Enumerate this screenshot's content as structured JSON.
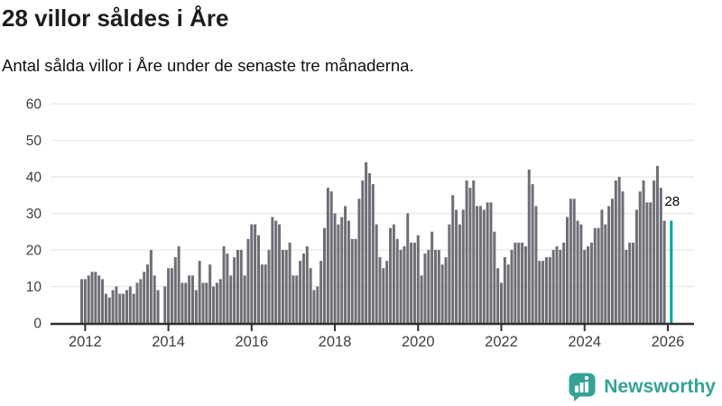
{
  "header": {
    "title": "28 villor såldes i Åre",
    "subtitle": "Antal sålda villor i Åre under de senaste tre månaderna."
  },
  "footer": {
    "brand": "Newsworthy"
  },
  "chart_data": {
    "type": "bar",
    "title": "28 villor såldes i Åre",
    "subtitle": "Antal sålda villor i Åre under de senaste tre månaderna.",
    "x_unit": "month",
    "x_start": "2011-12",
    "x_end": "2025-12",
    "ylim": [
      0,
      62
    ],
    "yticks": [
      0,
      10,
      20,
      30,
      40,
      50,
      60
    ],
    "grid": true,
    "values": [
      12,
      12,
      13,
      14,
      14,
      13,
      12,
      8,
      7,
      9,
      10,
      8,
      8,
      9,
      10,
      8,
      11,
      12,
      14,
      16,
      20,
      13,
      9,
      0,
      10,
      15,
      15,
      18,
      21,
      11,
      11,
      13,
      13,
      9,
      17,
      11,
      11,
      16,
      10,
      11,
      12,
      21,
      19,
      13,
      18,
      20,
      20,
      13,
      23,
      27,
      27,
      24,
      16,
      16,
      20,
      29,
      28,
      27,
      20,
      20,
      22,
      13,
      13,
      17,
      19,
      21,
      15,
      9,
      10,
      17,
      26,
      37,
      36,
      30,
      27,
      29,
      32,
      28,
      23,
      23,
      34,
      39,
      44,
      41,
      38,
      27,
      18,
      15,
      17,
      26,
      27,
      23,
      20,
      21,
      30,
      22,
      22,
      24,
      13,
      19,
      20,
      25,
      20,
      20,
      16,
      18,
      27,
      35,
      31,
      27,
      31,
      39,
      37,
      39,
      32,
      32,
      31,
      33,
      33,
      25,
      15,
      11,
      18,
      16,
      20,
      22,
      22,
      22,
      21,
      42,
      38,
      32,
      17,
      17,
      18,
      18,
      20,
      21,
      20,
      22,
      29,
      34,
      34,
      28,
      27,
      20,
      21,
      22,
      26,
      26,
      31,
      27,
      32,
      34,
      39,
      40,
      36,
      20,
      22,
      22,
      31,
      36,
      39,
      33,
      33,
      39,
      43,
      37,
      28
    ],
    "highlight": {
      "value": 28,
      "label": "28",
      "slot_offset": 2
    },
    "xticks": [
      {
        "label": "2012",
        "slot": 1
      },
      {
        "label": "2014",
        "slot": 25
      },
      {
        "label": "2016",
        "slot": 49
      },
      {
        "label": "2018",
        "slot": 73
      },
      {
        "label": "2020",
        "slot": 97
      },
      {
        "label": "2022",
        "slot": 121
      },
      {
        "label": "2024",
        "slot": 145
      },
      {
        "label": "2026",
        "slot": 169
      }
    ],
    "colors": {
      "bar": "#6E6E76",
      "highlight": "#00A1A2",
      "axis": "#2F2F2F",
      "grid": "#E7E7E7",
      "tick_label": "#404040",
      "annotation": "#000000",
      "brand": "#35A294"
    }
  }
}
